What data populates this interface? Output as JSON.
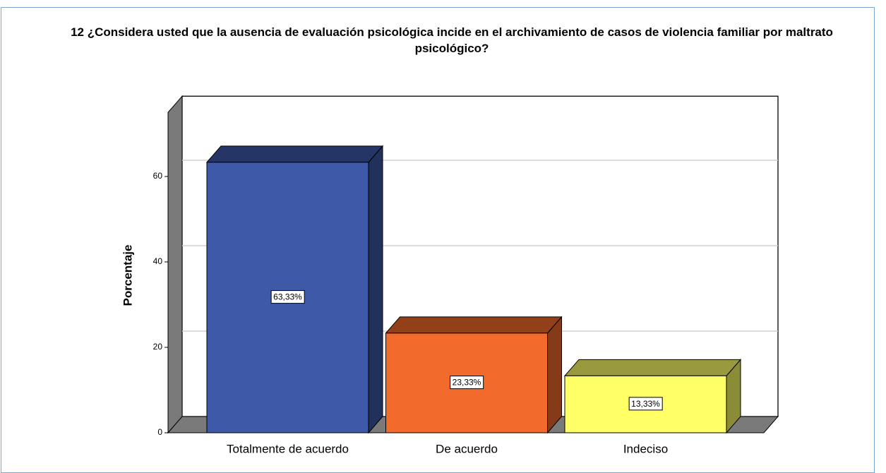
{
  "chart_data": {
    "type": "bar",
    "title": "12 ¿Considera usted que la ausencia de evaluación psicológica incide en el archivamiento de casos de violencia familiar por maltrato psicológico?",
    "y_label": "Porcentaje",
    "categories": [
      "Totalmente de acuerdo",
      "De acuerdo",
      "Indeciso"
    ],
    "values": [
      63.33,
      23.33,
      13.33
    ],
    "value_labels": [
      "63,33%",
      "23,33%",
      "13,33%"
    ],
    "colors": [
      "#3d59a8",
      "#f26a2c",
      "#ffff66"
    ],
    "ylim": [
      0,
      75
    ],
    "yticks": [
      0,
      20,
      40,
      60
    ],
    "grid": true
  }
}
